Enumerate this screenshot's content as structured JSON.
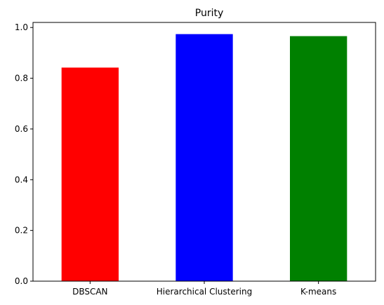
{
  "chart_data": {
    "type": "bar",
    "title": "Purity",
    "xlabel": "",
    "ylabel": "",
    "categories": [
      "DBSCAN",
      "Hierarchical Clustering",
      "K-means"
    ],
    "values": [
      0.842,
      0.974,
      0.966
    ],
    "colors": [
      "#ff0000",
      "#0000ff",
      "#008000"
    ],
    "ylim": [
      0,
      1.02
    ],
    "yticks": [
      "0.0",
      "0.2",
      "0.4",
      "0.6",
      "0.8",
      "1.0"
    ],
    "grid": false,
    "legend": "none"
  }
}
